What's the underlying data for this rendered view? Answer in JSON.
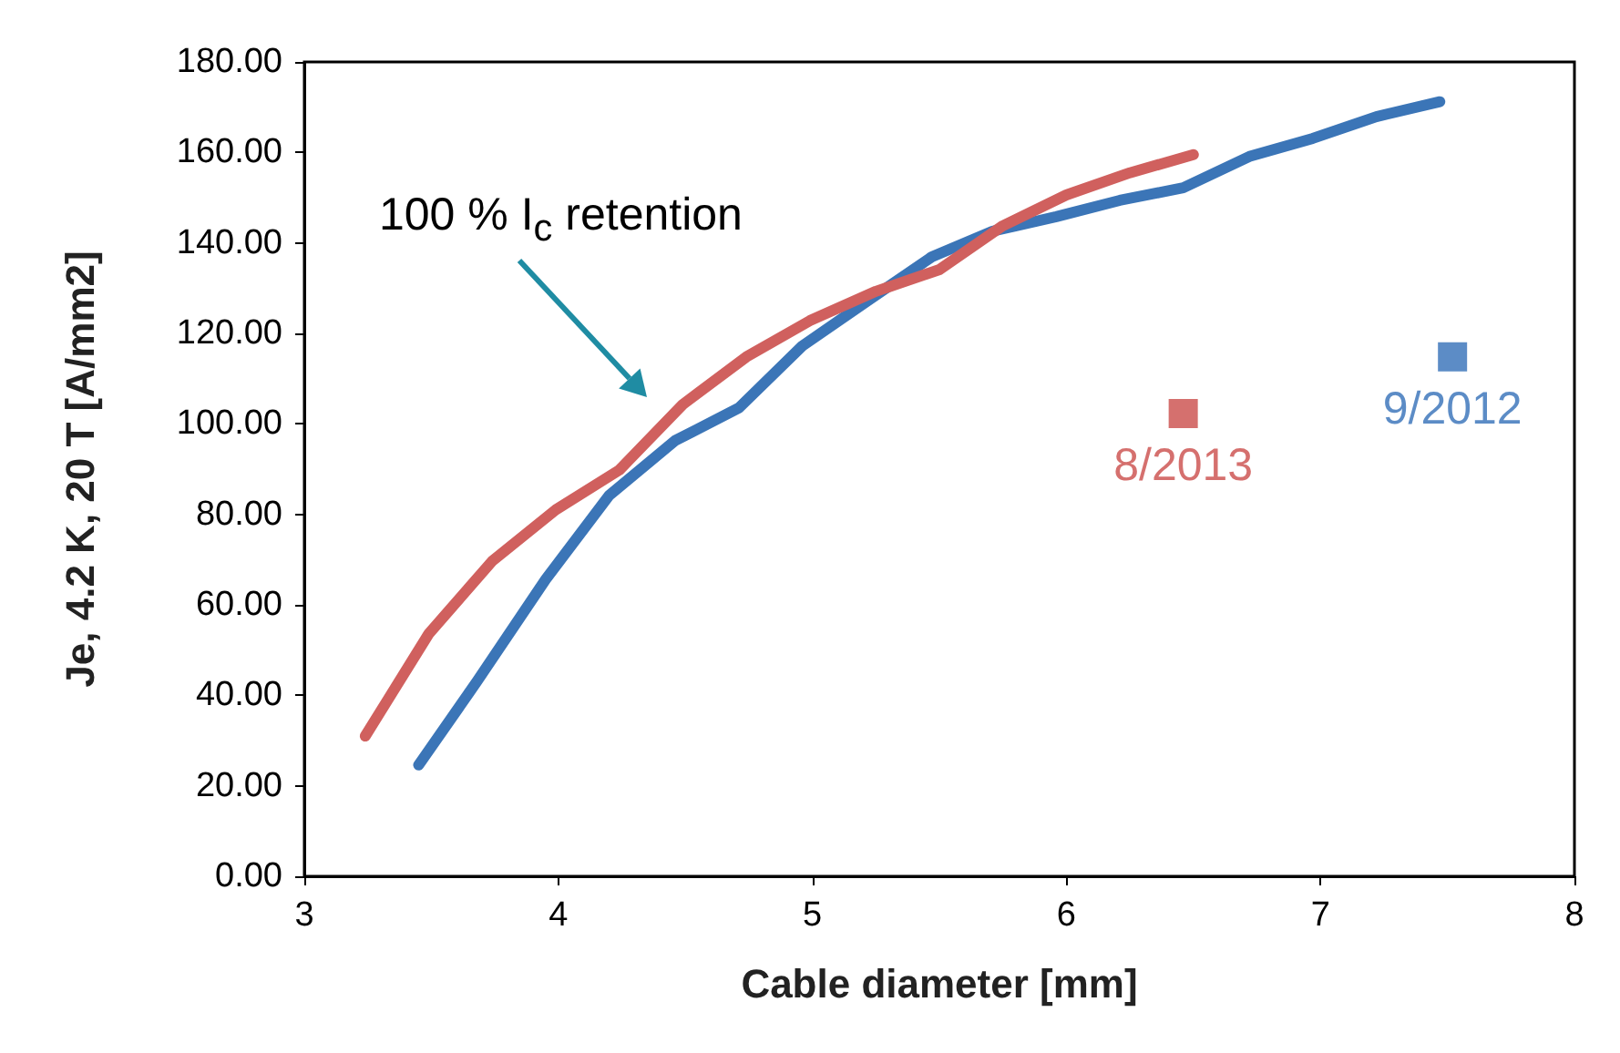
{
  "chart_data": {
    "type": "line",
    "xlabel": "Cable diameter [mm]",
    "ylabel": "Je, 4.2 K, 20 T [A/mm2]",
    "xlim": [
      3,
      8
    ],
    "xticks": [
      3,
      4,
      5,
      6,
      7,
      8
    ],
    "ylim": [
      0,
      180
    ],
    "yticks": [
      {
        "value": 0,
        "label": "0.00"
      },
      {
        "value": 20,
        "label": "20.00"
      },
      {
        "value": 40,
        "label": "40.00"
      },
      {
        "value": 60,
        "label": "60.00"
      },
      {
        "value": 80,
        "label": "80.00"
      },
      {
        "value": 100,
        "label": "100.00"
      },
      {
        "value": 120,
        "label": "120.00"
      },
      {
        "value": 140,
        "label": "140.00"
      },
      {
        "value": 160,
        "label": "160.00"
      },
      {
        "value": 180,
        "label": "180.00"
      }
    ],
    "grid": false,
    "line_style": "solid",
    "series": [
      {
        "color": "#3b75b7",
        "marker": "none",
        "x": [
          3.45,
          3.68,
          3.95,
          4.2,
          4.46,
          4.71,
          4.96,
          5.22,
          5.47,
          5.71,
          5.96,
          6.21,
          6.46,
          6.72,
          6.97,
          7.22,
          7.47
        ],
        "values": [
          24.6,
          43.1,
          65.6,
          84.2,
          96.3,
          103.5,
          117.2,
          127.3,
          136.9,
          142.6,
          145.8,
          149.4,
          152.2,
          159.1,
          163.1,
          167.9,
          171.2
        ]
      },
      {
        "color": "#d0605e",
        "marker": "none",
        "x": [
          3.24,
          3.49,
          3.74,
          3.99,
          4.24,
          4.49,
          4.74,
          4.99,
          5.25,
          5.5,
          5.75,
          6.0,
          6.25,
          6.5
        ],
        "values": [
          31,
          53.6,
          69.7,
          81,
          89.8,
          104.3,
          114.8,
          122.8,
          129.3,
          134.1,
          143.8,
          150.6,
          155.5,
          159.5
        ]
      },
      {
        "type": "scatter",
        "name": "8/2013",
        "color": "#d0605e",
        "marker": "square",
        "x": [
          6.46
        ],
        "values": [
          102.3
        ]
      },
      {
        "type": "scatter",
        "name": "9/2012",
        "color": "#4a7fc0",
        "marker": "square",
        "x": [
          7.52
        ],
        "values": [
          114.8
        ]
      }
    ],
    "annotations": [
      "100 % I$_{c}$ retention"
    ]
  }
}
